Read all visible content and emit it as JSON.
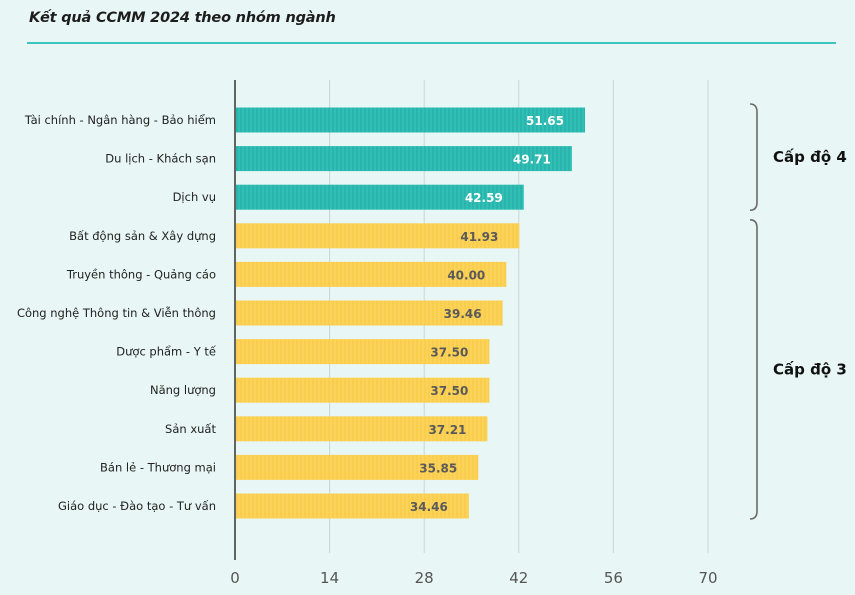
{
  "title": "Kết quả CCMM 2024 theo nhóm ngành",
  "colors": {
    "teal": "#2fbfb6",
    "teal_stripe": "#26aaa2",
    "yellow": "#fcd258",
    "yellow_stripe": "#f5c843",
    "background": "#e8f6f5",
    "grid": "#c9d6d5",
    "axis": "#333333"
  },
  "chart_data": {
    "type": "bar",
    "orientation": "horizontal",
    "title": "Kết quả CCMM 2024 theo nhóm ngành",
    "categories": [
      "Tài chính  - Ngân hàng -  Bảo hiểm",
      "Du lịch - Khách sạn",
      "Dịch vụ",
      "Bất động sản & Xây dựng",
      "Truyền thông - Quảng cáo",
      "Công nghệ Thông tin & Viễn thông",
      "Dược phẩm - Y tế",
      "Năng lượng",
      "Sản xuất",
      "Bán lẻ - Thương mại",
      "Giáo dục - Đào tạo - Tư vấn"
    ],
    "values": [
      51.65,
      49.71,
      42.59,
      41.93,
      40.0,
      39.46,
      37.5,
      37.5,
      37.21,
      35.85,
      34.46
    ],
    "value_labels": [
      "51.65",
      "49.71",
      "42.59",
      "41.93",
      "40.00",
      "39.46",
      "37.50",
      "37.50",
      "37.21",
      "35.85",
      "34.46"
    ],
    "groups": [
      {
        "label": "Cấp độ 4",
        "start": 0,
        "end": 2,
        "color_key": "teal"
      },
      {
        "label": "Cấp độ 3",
        "start": 3,
        "end": 10,
        "color_key": "yellow"
      }
    ],
    "xticks": [
      "0",
      "14",
      "28",
      "42",
      "56",
      "70"
    ],
    "tick_values": [
      0,
      14,
      28,
      42,
      56,
      70
    ],
    "xlim": [
      0,
      70
    ],
    "grid": true,
    "xlabel": "",
    "ylabel": ""
  }
}
